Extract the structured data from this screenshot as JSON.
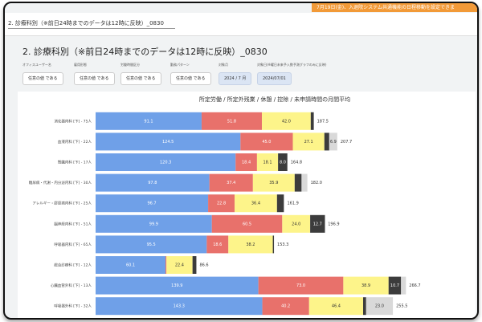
{
  "banner": "7月19日(金)、入退院システム共通機能の日程移動を設定できま",
  "tab": {
    "label": "2. 診療科別（※前日24時までのデータは12時に反映）_0830"
  },
  "header": {
    "title": "2. 診療科別（※前日24時までのデータは12時に反映）_0830"
  },
  "filters": [
    {
      "label": "オフィスユーザー名",
      "value": "任意の値 である"
    },
    {
      "label": "雇用形態",
      "value": "任意の値 である"
    },
    {
      "label": "労働時間区分",
      "value": "任意の値 である"
    },
    {
      "label": "勤務パターン",
      "value": "任意の値 である"
    },
    {
      "label": "対象月",
      "value": "2024 / 7 月"
    },
    {
      "label": "対象日(※曜日未来予入数予測グラフのみに反映)",
      "value": "2024/07/01"
    }
  ],
  "chart_data": {
    "type": "stacked-bar-horizontal",
    "title": "所定労働 / 所定外残業 / 休憩 / 控除 / 未申請時間の月間平均",
    "categories": [
      "消化器内科 [下] - 75人",
      "血液内科 [下] - 22人",
      "腎臓内科 [下] - 17人",
      "糖尿病・代謝・内分泌内科 [下] - 30人",
      "アレルギー・膠原病内科 [下] - 25人",
      "脳神経内科 [下] - 51人",
      "呼吸器内科 [下] - 65人",
      "総合診療科 [下] - 12人",
      "心臓血管外科 [下] - 13人",
      "呼吸器外科 [下] - 32人"
    ],
    "series": [
      {
        "color": "#6fa0e8",
        "text_color": "#ffffff",
        "values": [
          91.1,
          124.5,
          120.3,
          97.8,
          96.7,
          99.9,
          95.5,
          60.1,
          139.9,
          143.3
        ],
        "value_labels": [
          "91.1",
          "124.5",
          "120.3",
          "97.8",
          "96.7",
          "99.9",
          "95.5",
          "60.1",
          "139.9",
          "143.3"
        ]
      },
      {
        "color": "#e8716b",
        "text_color": "#ffffff",
        "values": [
          51.8,
          45.0,
          18.4,
          37.4,
          22.8,
          60.5,
          18.6,
          0.8,
          73.0,
          40.2
        ],
        "value_labels": [
          "51.8",
          "45.0",
          "18.4",
          "37.4",
          "22.8",
          "60.5",
          "18.6",
          "0.8",
          "73.0",
          "40.2"
        ]
      },
      {
        "color": "#fdf48a",
        "text_color": "#333333",
        "values": [
          42.0,
          27.1,
          18.1,
          35.9,
          36.4,
          24.0,
          38.2,
          22.4,
          38.9,
          46.4
        ],
        "value_labels": [
          "42.0",
          "27.1",
          "18.1",
          "35.9",
          "36.4",
          "24.0",
          "38.2",
          "22.4",
          "38.9",
          "46.4"
        ]
      },
      {
        "color": "#3c3c3c",
        "text_color": "#ffffff",
        "values": [
          2.6,
          4.2,
          8.0,
          5.9,
          5.9,
          12.7,
          1.0,
          3.3,
          10.7,
          2.6
        ],
        "value_labels": [
          "2.6",
          "4.2",
          "8.0",
          "5.9",
          "5.9",
          "12.7",
          "1.0",
          "3.3",
          "10.7",
          "2.6"
        ]
      },
      {
        "color": "#d9d9d9",
        "text_color": "#333333",
        "values": [
          null,
          6.9,
          null,
          5.0,
          null,
          null,
          null,
          null,
          4.2,
          23.0
        ],
        "value_labels": [
          null,
          "6.9",
          null,
          "5.0",
          null,
          null,
          null,
          null,
          "4.2",
          "23.0"
        ]
      }
    ],
    "totals": [
      187.5,
      207.7,
      164.8,
      182.0,
      161.9,
      196.9,
      153.3,
      86.6,
      266.7,
      255.5
    ],
    "total_labels": [
      "187.5",
      "207.7",
      "164.8",
      "182.0",
      "161.9",
      "196.9",
      "153.3",
      "86.6",
      "266.7",
      "255.5"
    ],
    "xlim": [
      0,
      330
    ]
  }
}
